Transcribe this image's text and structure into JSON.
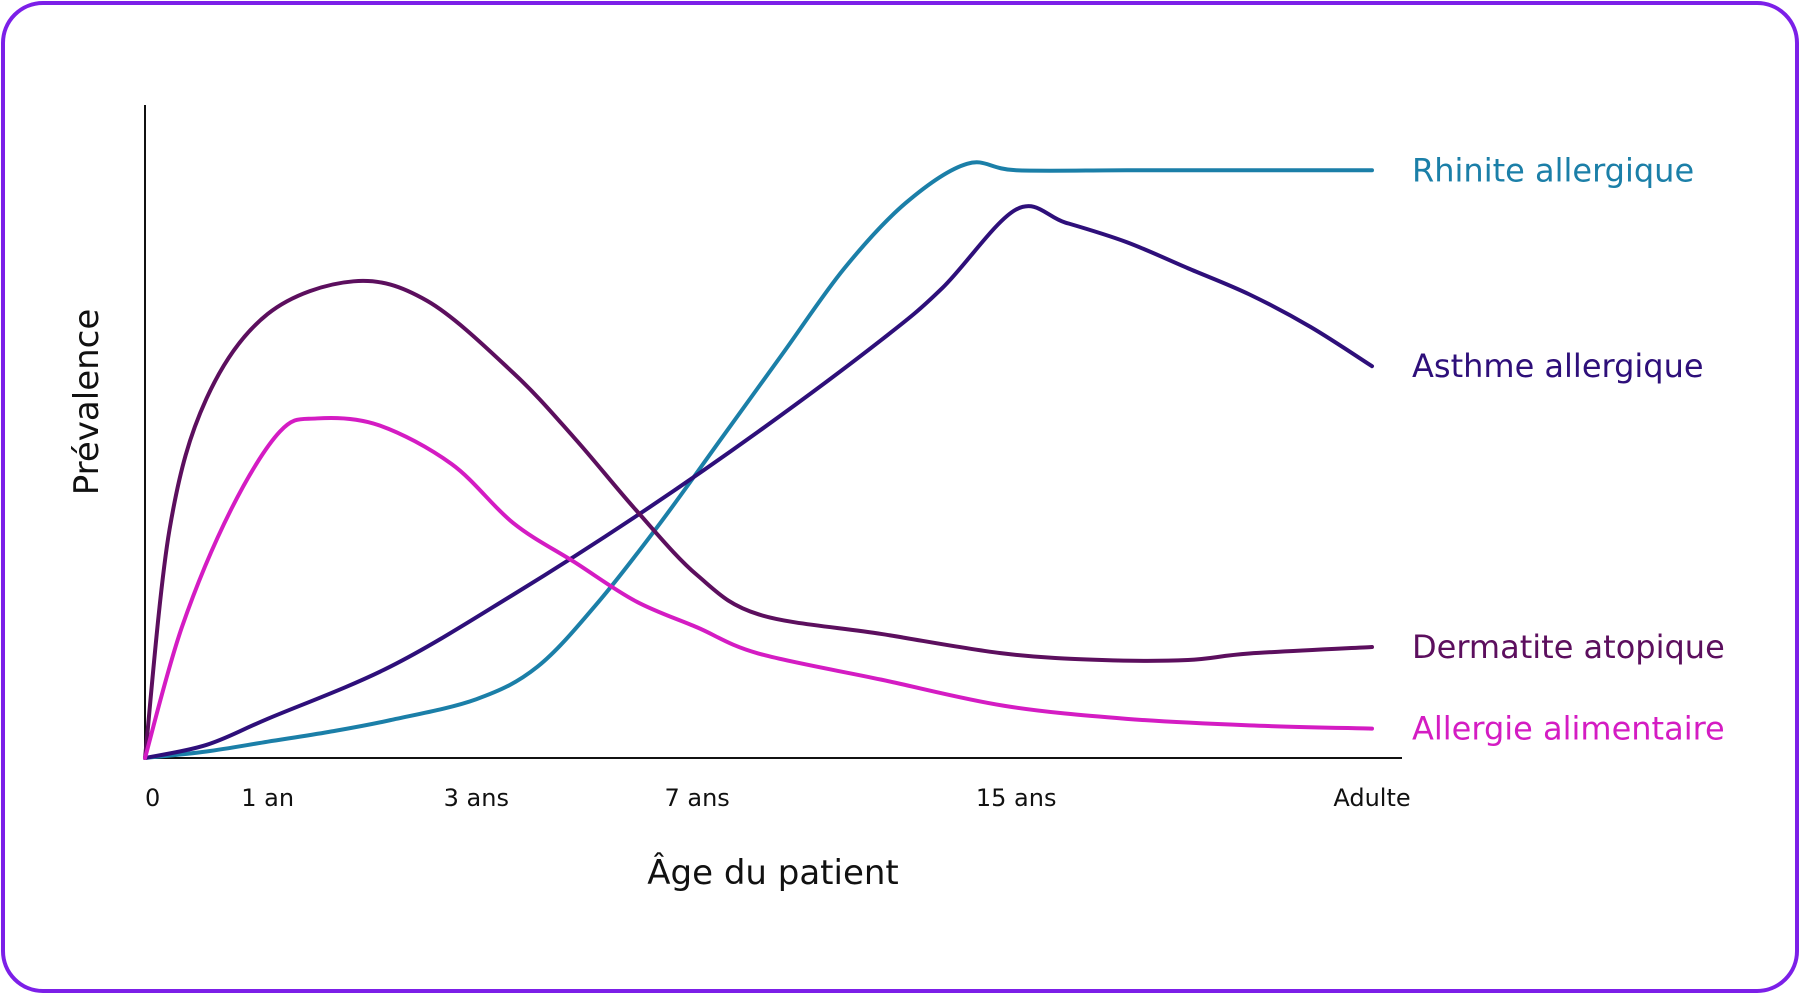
{
  "colors": {
    "frame": "#7c1fe8",
    "axis": "#111111",
    "background": "#ffffff"
  },
  "chart_data": {
    "type": "line",
    "xlabel": "Âge du patient",
    "ylabel": "Prévalence",
    "x_ticks": [
      "0",
      "1 an",
      "3 ans",
      "7 ans",
      "15 ans",
      "Adulte"
    ],
    "x_tick_positions": [
      0,
      1,
      2.7,
      4.5,
      7.1,
      10
    ],
    "xlim": [
      0,
      10
    ],
    "ylim": [
      0,
      1
    ],
    "grid": false,
    "series": [
      {
        "name": "Rhinite allergique",
        "color": "#1b7fa8",
        "points": [
          [
            0,
            0
          ],
          [
            0.5,
            0.01
          ],
          [
            1,
            0.025
          ],
          [
            1.5,
            0.04
          ],
          [
            2,
            0.058
          ],
          [
            2.7,
            0.09
          ],
          [
            3.2,
            0.14
          ],
          [
            3.7,
            0.24
          ],
          [
            4.2,
            0.36
          ],
          [
            4.7,
            0.49
          ],
          [
            5.2,
            0.62
          ],
          [
            5.7,
            0.75
          ],
          [
            6.2,
            0.85
          ],
          [
            6.7,
            0.91
          ],
          [
            7.1,
            0.9
          ],
          [
            8,
            0.9
          ],
          [
            9,
            0.9
          ],
          [
            10,
            0.9
          ]
        ]
      },
      {
        "name": "Asthme allergique",
        "color": "#2e0f7a",
        "points": [
          [
            0,
            0
          ],
          [
            0.5,
            0.02
          ],
          [
            1,
            0.06
          ],
          [
            2,
            0.14
          ],
          [
            3,
            0.25
          ],
          [
            4,
            0.37
          ],
          [
            5,
            0.5
          ],
          [
            6,
            0.64
          ],
          [
            6.5,
            0.72
          ],
          [
            7.1,
            0.84
          ],
          [
            7.5,
            0.82
          ],
          [
            8,
            0.79
          ],
          [
            8.5,
            0.75
          ],
          [
            9,
            0.71
          ],
          [
            9.5,
            0.66
          ],
          [
            10,
            0.6
          ]
        ]
      },
      {
        "name": "Dermatite atopique",
        "color": "#5c0f5e",
        "points": [
          [
            0,
            0
          ],
          [
            0.2,
            0.35
          ],
          [
            0.5,
            0.55
          ],
          [
            1,
            0.68
          ],
          [
            1.7,
            0.73
          ],
          [
            2.3,
            0.7
          ],
          [
            3,
            0.59
          ],
          [
            3.5,
            0.49
          ],
          [
            4,
            0.38
          ],
          [
            4.5,
            0.28
          ],
          [
            5,
            0.22
          ],
          [
            6,
            0.19
          ],
          [
            7,
            0.16
          ],
          [
            7.8,
            0.15
          ],
          [
            8.5,
            0.15
          ],
          [
            9,
            0.16
          ],
          [
            10,
            0.17
          ]
        ]
      },
      {
        "name": "Allergie alimentaire",
        "color": "#d41cc3",
        "points": [
          [
            0,
            0
          ],
          [
            0.3,
            0.2
          ],
          [
            0.7,
            0.38
          ],
          [
            1.1,
            0.5
          ],
          [
            1.4,
            0.52
          ],
          [
            1.9,
            0.51
          ],
          [
            2.5,
            0.45
          ],
          [
            3,
            0.36
          ],
          [
            3.5,
            0.3
          ],
          [
            4,
            0.24
          ],
          [
            4.5,
            0.2
          ],
          [
            5,
            0.16
          ],
          [
            6,
            0.12
          ],
          [
            7,
            0.08
          ],
          [
            8,
            0.06
          ],
          [
            9,
            0.05
          ],
          [
            10,
            0.045
          ]
        ]
      }
    ]
  }
}
